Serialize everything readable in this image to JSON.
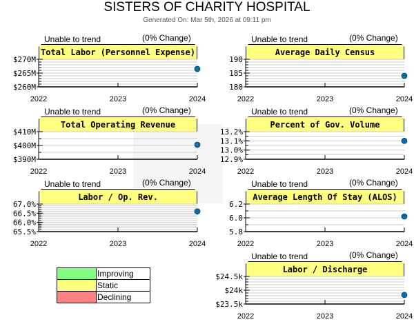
{
  "title": "SISTERS OF CHARITY HOSPITAL",
  "subtitle": "Generated On: Mar 5th, 2026 at 09:11 pm",
  "legend": [
    {
      "label": "Improving",
      "color": "#80ff80"
    },
    {
      "label": "Static",
      "color": "#ffff80"
    },
    {
      "label": "Declining",
      "color": "#ff8080"
    }
  ],
  "chart_data": [
    {
      "type": "scatter",
      "title": "Total Labor (Personnel Expense)",
      "trend": "Unable to trend",
      "change": "(0% Change)",
      "categories": [
        "2022",
        "2023",
        "2024"
      ],
      "ylim": [
        260,
        270
      ],
      "yticks": [
        "$260M",
        "$265M",
        "$270M"
      ],
      "tickvals": [
        260,
        265,
        270
      ],
      "x": [
        "2024"
      ],
      "y": [
        266.5
      ],
      "minor": 1
    },
    {
      "type": "scatter",
      "title": "Average Daily Census",
      "trend": "Unable to trend",
      "change": "(0% Change)",
      "categories": [
        "2022",
        "2023",
        "2024"
      ],
      "ylim": [
        180,
        190
      ],
      "yticks": [
        "180",
        "185",
        "190"
      ],
      "tickvals": [
        180,
        185,
        190
      ],
      "x": [
        "2024"
      ],
      "y": [
        184
      ],
      "minor": 1
    },
    {
      "type": "scatter",
      "title": "Total Operating Revenue",
      "trend": "Unable to trend",
      "change": "(0% Change)",
      "categories": [
        "2022",
        "2023",
        "2024"
      ],
      "ylim": [
        390,
        410
      ],
      "yticks": [
        "$390M",
        "$400M",
        "$410M"
      ],
      "tickvals": [
        390,
        400,
        410
      ],
      "x": [
        "2024"
      ],
      "y": [
        400.5
      ],
      "minor": 5
    },
    {
      "type": "scatter",
      "title": "Percent of Gov. Volume",
      "trend": "Unable to trend",
      "change": "(0% Change)",
      "categories": [
        "2022",
        "2023",
        "2024"
      ],
      "ylim": [
        12.9,
        13.2
      ],
      "yticks": [
        "12.9%",
        "13.0%",
        "13.1%",
        "13.2%"
      ],
      "tickvals": [
        12.9,
        13.0,
        13.1,
        13.2
      ],
      "x": [
        "2024"
      ],
      "y": [
        13.1
      ],
      "minor": 0.05
    },
    {
      "type": "scatter",
      "title": "Labor / Op. Rev.",
      "trend": "Unable to trend",
      "change": "(0% Change)",
      "categories": [
        "2022",
        "2023",
        "2024"
      ],
      "ylim": [
        65.5,
        67.0
      ],
      "yticks": [
        "65.5%",
        "66.0%",
        "66.5%",
        "67.0%"
      ],
      "tickvals": [
        65.5,
        66.0,
        66.5,
        67.0
      ],
      "x": [
        "2024"
      ],
      "y": [
        66.6
      ],
      "minor": 0.1
    },
    {
      "type": "scatter",
      "title": "Average Length Of Stay (ALOS)",
      "trend": "Unable to trend",
      "change": "(0% Change)",
      "categories": [
        "2022",
        "2023",
        "2024"
      ],
      "ylim": [
        5.8,
        6.2
      ],
      "yticks": [
        "5.8",
        "6.0",
        "6.2"
      ],
      "tickvals": [
        5.8,
        6.0,
        6.2
      ],
      "x": [
        "2024"
      ],
      "y": [
        6.02
      ],
      "minor": 0.1
    },
    {
      "type": "scatter",
      "title": "Labor / Discharge",
      "trend": "Unable to trend",
      "change": "(0% Change)",
      "categories": [
        "2022",
        "2023",
        "2024"
      ],
      "ylim": [
        23.5,
        24.5
      ],
      "yticks": [
        "$23.5k",
        "$24k",
        "$24.5k"
      ],
      "tickvals": [
        23.5,
        24.0,
        24.5
      ],
      "x": [
        "2024"
      ],
      "y": [
        23.83
      ],
      "minor": 0.1
    }
  ]
}
